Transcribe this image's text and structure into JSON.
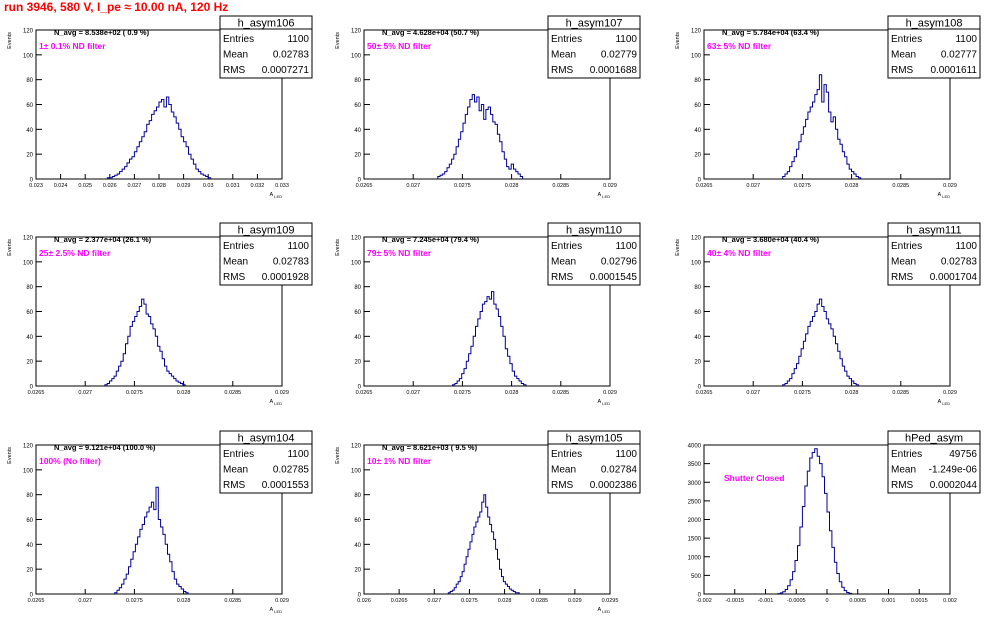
{
  "run_title": "run 3946,   580 V, I_pe ≈ 10.00 nA, 120 Hz",
  "colors": {
    "title": "#ff0000",
    "histogram": "#000099",
    "annotation": "#ff00ff",
    "axis": "#000000"
  },
  "chart_data": [
    {
      "type": "histogram",
      "name": "h_asym106",
      "stats": {
        "entries_label": "Entries",
        "entries": "1100",
        "mean_label": "Mean",
        "mean": "0.02783",
        "rms_label": "RMS",
        "rms": "0.0007271"
      },
      "n_avg": "N_avg = 8.538e+02 ( 0.9 %)",
      "annotation": "1± 0.1% ND filter",
      "xlabel": "A_LED",
      "ylabel": "Events",
      "xlim": [
        0.023,
        0.033
      ],
      "ylim": [
        0,
        120
      ],
      "xticks": [
        0.023,
        0.024,
        0.025,
        0.026,
        0.027,
        0.028,
        0.029,
        0.03,
        0.031,
        0.032,
        0.033
      ],
      "xtick_labels": [
        "0.023",
        "0.024",
        "0.025",
        "0.026",
        "0.027",
        "0.028",
        "0.029",
        "0.03",
        "0.031",
        "0.032",
        "0.033"
      ],
      "yticks": [
        0,
        20,
        40,
        60,
        80,
        100,
        120
      ],
      "ytick_labels": [
        "0",
        "20",
        "40",
        "60",
        "80",
        "100",
        "120"
      ],
      "x_start": 0.0259,
      "bin_width": 0.0001,
      "values": [
        1,
        1,
        2,
        3,
        4,
        6,
        8,
        10,
        13,
        16,
        18,
        22,
        26,
        30,
        34,
        38,
        44,
        47,
        52,
        55,
        58,
        62,
        64,
        58,
        66,
        60,
        54,
        50,
        45,
        40,
        34,
        30,
        26,
        20,
        16,
        12,
        8,
        6,
        4,
        3,
        2,
        1
      ]
    },
    {
      "type": "histogram",
      "name": "h_asym107",
      "stats": {
        "entries_label": "Entries",
        "entries": "1100",
        "mean_label": "Mean",
        "mean": "0.02779",
        "rms_label": "RMS",
        "rms": "0.0001688"
      },
      "n_avg": "N_avg = 4.628e+04 (50.7 %)",
      "annotation": "50± 5% ND filter",
      "xlabel": "A_LED",
      "ylabel": "Events",
      "xlim": [
        0.0265,
        0.029
      ],
      "ylim": [
        0,
        120
      ],
      "xticks": [
        0.0265,
        0.027,
        0.0275,
        0.028,
        0.0285,
        0.029
      ],
      "xtick_labels": [
        "0.0265",
        "0.027",
        "0.0275",
        "0.028",
        "0.0285",
        "0.029"
      ],
      "yticks": [
        0,
        20,
        40,
        60,
        80,
        100,
        120
      ],
      "ytick_labels": [
        "0",
        "20",
        "40",
        "60",
        "80",
        "100",
        "120"
      ],
      "x_start": 0.02725,
      "bin_width": 2.33e-05,
      "values": [
        2,
        3,
        4,
        6,
        9,
        12,
        16,
        20,
        26,
        32,
        38,
        45,
        52,
        58,
        64,
        68,
        62,
        66,
        55,
        60,
        48,
        56,
        58,
        52,
        46,
        44,
        36,
        30,
        22,
        16,
        10,
        8,
        12,
        8,
        6,
        4,
        2
      ]
    },
    {
      "type": "histogram",
      "name": "h_asym108",
      "stats": {
        "entries_label": "Entries",
        "entries": "1100",
        "mean_label": "Mean",
        "mean": "0.02777",
        "rms_label": "RMS",
        "rms": "0.0001611"
      },
      "n_avg": "N_avg = 5.784e+04 (63.4 %)",
      "annotation": "63± 5% ND filter",
      "xlabel": "A_LED",
      "ylabel": "Events",
      "xlim": [
        0.0265,
        0.029
      ],
      "ylim": [
        0,
        120
      ],
      "xticks": [
        0.0265,
        0.027,
        0.0275,
        0.028,
        0.0285,
        0.029
      ],
      "xtick_labels": [
        "0.0265",
        "0.027",
        "0.0275",
        "0.028",
        "0.0285",
        "0.029"
      ],
      "yticks": [
        0,
        20,
        40,
        60,
        80,
        100,
        120
      ],
      "ytick_labels": [
        "0",
        "20",
        "40",
        "60",
        "80",
        "100",
        "120"
      ],
      "x_start": 0.0273,
      "bin_width": 2.33e-05,
      "values": [
        2,
        4,
        6,
        10,
        14,
        18,
        24,
        30,
        36,
        42,
        48,
        54,
        58,
        62,
        68,
        72,
        84,
        62,
        76,
        70,
        54,
        46,
        50,
        40,
        32,
        28,
        22,
        18,
        12,
        8,
        6,
        4,
        2,
        1
      ]
    },
    {
      "type": "histogram",
      "name": "h_asym109",
      "stats": {
        "entries_label": "Entries",
        "entries": "1100",
        "mean_label": "Mean",
        "mean": "0.02783",
        "rms_label": "RMS",
        "rms": "0.0001928"
      },
      "n_avg": "N_avg = 2.377e+04 (26.1 %)",
      "annotation": "25± 2.5% ND filter",
      "xlabel": "A_LED",
      "ylabel": "Events",
      "xlim": [
        0.0265,
        0.029
      ],
      "ylim": [
        0,
        120
      ],
      "xticks": [
        0.0265,
        0.027,
        0.0275,
        0.028,
        0.0285,
        0.029
      ],
      "xtick_labels": [
        "0.0265",
        "0.027",
        "0.0275",
        "0.028",
        "0.0285",
        "0.029"
      ],
      "yticks": [
        0,
        20,
        40,
        60,
        80,
        100,
        120
      ],
      "ytick_labels": [
        "0",
        "20",
        "40",
        "60",
        "80",
        "100",
        "120"
      ],
      "x_start": 0.0272,
      "bin_width": 2.33e-05,
      "values": [
        1,
        2,
        4,
        6,
        8,
        12,
        16,
        20,
        26,
        34,
        40,
        48,
        52,
        56,
        60,
        64,
        70,
        66,
        58,
        56,
        50,
        46,
        40,
        32,
        28,
        22,
        16,
        12,
        10,
        8,
        6,
        4,
        3,
        2,
        1
      ]
    },
    {
      "type": "histogram",
      "name": "h_asym110",
      "stats": {
        "entries_label": "Entries",
        "entries": "1100",
        "mean_label": "Mean",
        "mean": "0.02796",
        "rms_label": "RMS",
        "rms": "0.0001545"
      },
      "n_avg": "N_avg = 7.245e+04 (79.4 %)",
      "annotation": "79± 5% ND filter",
      "xlabel": "A_LED",
      "ylabel": "Events",
      "xlim": [
        0.0265,
        0.029
      ],
      "ylim": [
        0,
        120
      ],
      "xticks": [
        0.0265,
        0.027,
        0.0275,
        0.028,
        0.0285,
        0.029
      ],
      "xtick_labels": [
        "0.0265",
        "0.027",
        "0.0275",
        "0.028",
        "0.0285",
        "0.029"
      ],
      "yticks": [
        0,
        20,
        40,
        60,
        80,
        100,
        120
      ],
      "ytick_labels": [
        "0",
        "20",
        "40",
        "60",
        "80",
        "100",
        "120"
      ],
      "x_start": 0.0274,
      "bin_width": 2.33e-05,
      "values": [
        1,
        2,
        4,
        6,
        10,
        14,
        20,
        26,
        32,
        40,
        48,
        54,
        60,
        66,
        68,
        72,
        70,
        76,
        66,
        62,
        56,
        48,
        40,
        30,
        24,
        18,
        12,
        8,
        6,
        4,
        2,
        1
      ]
    },
    {
      "type": "histogram",
      "name": "h_asym111",
      "stats": {
        "entries_label": "Entries",
        "entries": "1100",
        "mean_label": "Mean",
        "mean": "0.02783",
        "rms_label": "RMS",
        "rms": "0.0001704"
      },
      "n_avg": "N_avg = 3.680e+04 (40.4 %)",
      "annotation": "40± 4% ND filter",
      "xlabel": "A_LED",
      "ylabel": "Events",
      "xlim": [
        0.0265,
        0.029
      ],
      "ylim": [
        0,
        120
      ],
      "xticks": [
        0.0265,
        0.027,
        0.0275,
        0.028,
        0.0285,
        0.029
      ],
      "xtick_labels": [
        "0.0265",
        "0.027",
        "0.0275",
        "0.028",
        "0.0285",
        "0.029"
      ],
      "yticks": [
        0,
        20,
        40,
        60,
        80,
        100,
        120
      ],
      "ytick_labels": [
        "0",
        "20",
        "40",
        "60",
        "80",
        "100",
        "120"
      ],
      "x_start": 0.0273,
      "bin_width": 2.33e-05,
      "values": [
        1,
        2,
        4,
        6,
        10,
        14,
        18,
        24,
        30,
        36,
        42,
        48,
        52,
        56,
        60,
        66,
        70,
        64,
        60,
        54,
        50,
        46,
        40,
        34,
        28,
        22,
        16,
        12,
        8,
        6,
        4,
        2,
        1
      ]
    },
    {
      "type": "histogram",
      "name": "h_asym104",
      "stats": {
        "entries_label": "Entries",
        "entries": "1100",
        "mean_label": "Mean",
        "mean": "0.02785",
        "rms_label": "RMS",
        "rms": "0.0001553"
      },
      "n_avg": "N_avg = 9.121e+04 (100.0 %)",
      "annotation": "100% (No filter)",
      "xlabel": "A_LED",
      "ylabel": "Events",
      "xlim": [
        0.0265,
        0.029
      ],
      "ylim": [
        0,
        120
      ],
      "xticks": [
        0.0265,
        0.027,
        0.0275,
        0.028,
        0.0285,
        0.029
      ],
      "xtick_labels": [
        "0.0265",
        "0.027",
        "0.0275",
        "0.028",
        "0.0285",
        "0.029"
      ],
      "yticks": [
        0,
        20,
        40,
        60,
        80,
        100,
        120
      ],
      "ytick_labels": [
        "0",
        "20",
        "40",
        "60",
        "80",
        "100",
        "120"
      ],
      "x_start": 0.0273,
      "bin_width": 2.33e-05,
      "values": [
        1,
        3,
        5,
        8,
        12,
        16,
        22,
        28,
        34,
        40,
        46,
        52,
        56,
        62,
        66,
        70,
        74,
        68,
        86,
        60,
        54,
        48,
        40,
        32,
        26,
        18,
        12,
        8,
        6,
        4,
        2,
        1
      ]
    },
    {
      "type": "histogram",
      "name": "h_asym105",
      "stats": {
        "entries_label": "Entries",
        "entries": "1100",
        "mean_label": "Mean",
        "mean": "0.02784",
        "rms_label": "RMS",
        "rms": "0.0002386"
      },
      "n_avg": "N_avg = 8.621e+03 ( 9.5 %)",
      "annotation": "10± 1% ND filter",
      "xlabel": "A_LED",
      "ylabel": "Events",
      "xlim": [
        0.026,
        0.0295
      ],
      "ylim": [
        0,
        120
      ],
      "xticks": [
        0.026,
        0.0265,
        0.027,
        0.0275,
        0.028,
        0.0285,
        0.029,
        0.0295
      ],
      "xtick_labels": [
        "0.026",
        "0.0265",
        "0.027",
        "0.0275",
        "0.028",
        "0.0285",
        "0.029",
        "0.0295"
      ],
      "yticks": [
        0,
        20,
        40,
        60,
        80,
        100,
        120
      ],
      "ytick_labels": [
        "0",
        "20",
        "40",
        "60",
        "80",
        "100",
        "120"
      ],
      "x_start": 0.0272,
      "bin_width": 2.8e-05,
      "values": [
        1,
        2,
        3,
        5,
        8,
        10,
        14,
        18,
        24,
        30,
        36,
        42,
        48,
        54,
        58,
        62,
        66,
        74,
        80,
        70,
        62,
        56,
        50,
        44,
        36,
        28,
        20,
        14,
        10,
        8,
        6,
        4,
        3,
        2,
        1,
        1
      ]
    },
    {
      "type": "histogram",
      "name": "hPed_asym",
      "stats": {
        "entries_label": "Entries",
        "entries": "49756",
        "mean_label": "Mean",
        "mean": "-1.249e-06",
        "rms_label": "RMS",
        "rms": "0.0002044"
      },
      "n_avg": "",
      "annotation": "Shutter Closed",
      "xlabel": "",
      "ylabel": "",
      "xlim": [
        -0.002,
        0.002
      ],
      "ylim": [
        0,
        4000
      ],
      "xticks": [
        -0.002,
        -0.0015,
        -0.001,
        -0.0005,
        0,
        0.0005,
        0.001,
        0.0015,
        0.002
      ],
      "xtick_labels": [
        "-0.002",
        "-0.0015",
        "-0.001",
        "-0.0005",
        "0",
        "0.0005",
        "0.001",
        "0.0015",
        "0.002"
      ],
      "yticks": [
        0,
        500,
        1000,
        1500,
        2000,
        2500,
        3000,
        3500,
        4000
      ],
      "ytick_labels": [
        "0",
        "500",
        "1000",
        "1500",
        "2000",
        "2500",
        "3000",
        "3500",
        "4000"
      ],
      "x_start": -0.0008,
      "bin_width": 4e-05,
      "values": [
        10,
        30,
        60,
        120,
        220,
        380,
        600,
        900,
        1300,
        1800,
        2350,
        2900,
        3300,
        3650,
        3800,
        3900,
        3700,
        3500,
        3150,
        2700,
        2200,
        1700,
        1250,
        850,
        550,
        330,
        180,
        90,
        40,
        15
      ]
    }
  ]
}
